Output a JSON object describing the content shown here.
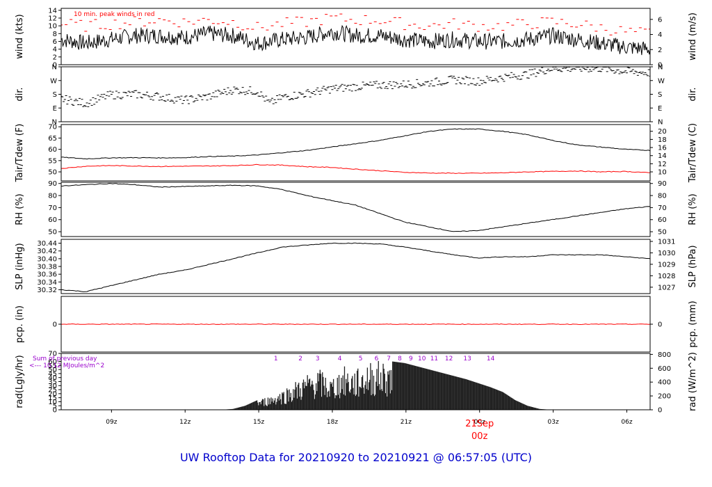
{
  "title": "UW Rooftop Data for 20210920  to  20210921 @ 06:57:05  (UTC)",
  "colors": {
    "primary": "#000000",
    "secondary": "#ff0000",
    "note": "#9900cc",
    "title": "#0000cc"
  },
  "chart_data": {
    "type": "line",
    "x_axis": {
      "unit": "hours since 20210920 06:57 UTC",
      "range": [
        0,
        24
      ],
      "ticks": [
        {
          "x": 2.05,
          "label": "09z"
        },
        {
          "x": 5.05,
          "label": "12z"
        },
        {
          "x": 8.05,
          "label": "15z"
        },
        {
          "x": 11.05,
          "label": "18z"
        },
        {
          "x": 14.05,
          "label": "21z"
        },
        {
          "x": 17.05,
          "label": "00z"
        },
        {
          "x": 20.05,
          "label": "03z"
        },
        {
          "x": 23.05,
          "label": "06z"
        }
      ],
      "date_marker": {
        "x": 17.05,
        "date": "21Sep",
        "time": "00z"
      }
    },
    "panels": [
      {
        "id": "wind",
        "left_label": "wind (kts)",
        "right_label": "wind (m/s)",
        "ylim": [
          0,
          14.5
        ],
        "left_ticks": [
          {
            "v": 0,
            "t": "0"
          },
          {
            "v": 2,
            "t": "2"
          },
          {
            "v": 4,
            "t": "4"
          },
          {
            "v": 6,
            "t": "6"
          },
          {
            "v": 8,
            "t": "8"
          },
          {
            "v": 10,
            "t": "10"
          },
          {
            "v": 12,
            "t": "12"
          },
          {
            "v": 14,
            "t": "14"
          }
        ],
        "right_ticks": [
          {
            "v": 0,
            "t": "0"
          },
          {
            "v": 3.89,
            "t": "2"
          },
          {
            "v": 7.78,
            "t": "4"
          },
          {
            "v": 11.66,
            "t": "6"
          }
        ],
        "note": "10 min. peak winds in red",
        "series": [
          {
            "name": "wind speed",
            "color": "#000000",
            "style": "noisy",
            "x": [
              0,
              1,
              2,
              3,
              4,
              5,
              6,
              7,
              8,
              9,
              10,
              11,
              12,
              13,
              14,
              15,
              16,
              17,
              18,
              19,
              20,
              21,
              22,
              23,
              24
            ],
            "y": [
              6.5,
              5.5,
              6.5,
              7.5,
              7.5,
              7,
              8,
              7.5,
              5.5,
              6.5,
              7,
              8.5,
              7.5,
              7.5,
              6.5,
              6,
              6.5,
              6,
              6,
              6.5,
              7.5,
              6.5,
              5.5,
              4.5,
              4
            ]
          },
          {
            "name": "peak winds",
            "color": "#ff0000",
            "style": "dashes",
            "x": [
              0,
              1,
              2,
              3,
              4,
              5,
              6,
              7,
              8,
              9,
              10,
              11,
              12,
              13,
              14,
              15,
              16,
              17,
              18,
              19,
              20,
              21,
              22,
              23,
              24
            ],
            "y": [
              10.5,
              10,
              10.5,
              11,
              11.5,
              11,
              11.5,
              11,
              9.5,
              10.5,
              11,
              12,
              11.5,
              11.5,
              10.5,
              10,
              10.5,
              10,
              10,
              10.5,
              11,
              10.5,
              9.5,
              8.5,
              8
            ]
          }
        ]
      },
      {
        "id": "dir",
        "left_label": "dir.",
        "right_label": "dir.",
        "ylim": [
          0,
          360
        ],
        "left_ticks": [
          {
            "v": 360,
            "t": "N"
          },
          {
            "v": 270,
            "t": "W"
          },
          {
            "v": 180,
            "t": "S"
          },
          {
            "v": 90,
            "t": "E"
          },
          {
            "v": 0,
            "t": "N"
          }
        ],
        "right_ticks": [
          {
            "v": 360,
            "t": "N"
          },
          {
            "v": 270,
            "t": "W"
          },
          {
            "v": 180,
            "t": "S"
          },
          {
            "v": 90,
            "t": "E"
          },
          {
            "v": 0,
            "t": "N"
          }
        ],
        "series": [
          {
            "name": "direction",
            "color": "#000000",
            "style": "scatter",
            "x": [
              0,
              1,
              2,
              3,
              4,
              5,
              6,
              7,
              8,
              8.5,
              9,
              10,
              11,
              12,
              13,
              14,
              15,
              16,
              17,
              18,
              19,
              20,
              21,
              22,
              23,
              24
            ],
            "y": [
              150,
              120,
              175,
              180,
              165,
              140,
              165,
              210,
              200,
              120,
              160,
              185,
              215,
              230,
              240,
              245,
              255,
              275,
              265,
              290,
              310,
              350,
              350,
              350,
              330,
              320
            ]
          }
        ]
      },
      {
        "id": "temp",
        "left_label": "Tair/Tdew (F)",
        "right_label": "Tair/Tdew (C)",
        "ylim": [
          46,
          71
        ],
        "left_ticks": [
          {
            "v": 50,
            "t": "50"
          },
          {
            "v": 55,
            "t": "55"
          },
          {
            "v": 60,
            "t": "60"
          },
          {
            "v": 65,
            "t": "65"
          },
          {
            "v": 70,
            "t": "70"
          }
        ],
        "right_ticks": [
          {
            "v": 50,
            "t": "10"
          },
          {
            "v": 53.6,
            "t": "12"
          },
          {
            "v": 57.2,
            "t": "14"
          },
          {
            "v": 60.8,
            "t": "16"
          },
          {
            "v": 64.4,
            "t": "18"
          },
          {
            "v": 68,
            "t": "20"
          }
        ],
        "series": [
          {
            "name": "Tair",
            "color": "#000000",
            "style": "line",
            "x": [
              0,
              1,
              2,
              3,
              4,
              5,
              6,
              7,
              8,
              9,
              10,
              11,
              12,
              13,
              14,
              15,
              16,
              17,
              18,
              19,
              20,
              21,
              22,
              23,
              24
            ],
            "y": [
              56.5,
              55.8,
              56.2,
              56.3,
              56.2,
              56.3,
              56.8,
              57,
              57.5,
              58.5,
              59.5,
              61,
              62.5,
              64,
              66,
              68,
              69,
              69,
              68,
              66.5,
              64,
              62,
              61,
              60,
              59.5
            ]
          },
          {
            "name": "Tdew",
            "color": "#ff0000",
            "style": "line",
            "x": [
              0,
              1,
              2,
              3,
              4,
              5,
              6,
              7,
              8,
              9,
              10,
              11,
              12,
              13,
              14,
              15,
              16,
              17,
              18,
              19,
              20,
              21,
              22,
              23,
              24
            ],
            "y": [
              51.5,
              52.5,
              52.8,
              52.6,
              52.4,
              52.5,
              52.6,
              52.8,
              53.2,
              53,
              52.3,
              52,
              51.2,
              50.5,
              49.8,
              49.5,
              49.4,
              49.4,
              49.6,
              50,
              50.2,
              50.4,
              50,
              50.2,
              49.6
            ]
          }
        ]
      },
      {
        "id": "rh",
        "left_label": "RH (%)",
        "right_label": "RH (%)",
        "ylim": [
          46,
          91
        ],
        "left_ticks": [
          {
            "v": 50,
            "t": "50"
          },
          {
            "v": 60,
            "t": "60"
          },
          {
            "v": 70,
            "t": "70"
          },
          {
            "v": 80,
            "t": "80"
          },
          {
            "v": 90,
            "t": "90"
          }
        ],
        "right_ticks": [
          {
            "v": 50,
            "t": "50"
          },
          {
            "v": 60,
            "t": "60"
          },
          {
            "v": 70,
            "t": "70"
          },
          {
            "v": 80,
            "t": "80"
          },
          {
            "v": 90,
            "t": "90"
          }
        ],
        "series": [
          {
            "name": "RH",
            "color": "#000000",
            "style": "line",
            "x": [
              0,
              1,
              2,
              3,
              4,
              5,
              6,
              7,
              8,
              9,
              10,
              11,
              12,
              13,
              14,
              15,
              16,
              17,
              18,
              19,
              20,
              21,
              22,
              23,
              24
            ],
            "y": [
              88,
              89,
              90,
              89,
              87,
              87.5,
              88,
              88.5,
              88,
              85,
              80,
              76,
              72,
              65,
              58,
              54,
              50,
              51,
              54,
              57,
              60,
              63,
              66,
              69,
              71
            ]
          }
        ]
      },
      {
        "id": "slp",
        "left_label": "SLP (inHg)",
        "right_label": "SLP (hPa)",
        "ylim": [
          30.31,
          30.45
        ],
        "left_ticks": [
          {
            "v": 30.32,
            "t": "30.32"
          },
          {
            "v": 30.34,
            "t": "30.34"
          },
          {
            "v": 30.36,
            "t": "30.36"
          },
          {
            "v": 30.38,
            "t": "30.38"
          },
          {
            "v": 30.4,
            "t": "30.40"
          },
          {
            "v": 30.42,
            "t": "30.42"
          },
          {
            "v": 30.44,
            "t": "30.44"
          }
        ],
        "right_ticks": [
          {
            "v": 30.3265,
            "t": "1027"
          },
          {
            "v": 30.356,
            "t": "1028"
          },
          {
            "v": 30.3856,
            "t": "1029"
          },
          {
            "v": 30.4151,
            "t": "1030"
          },
          {
            "v": 30.4446,
            "t": "1031"
          }
        ],
        "series": [
          {
            "name": "SLP",
            "color": "#000000",
            "style": "line",
            "x": [
              0,
              1,
              2,
              3,
              4,
              5,
              6,
              7,
              8,
              9,
              10,
              11,
              12,
              13,
              14,
              15,
              16,
              17,
              18,
              19,
              20,
              21,
              22,
              23,
              24
            ],
            "y": [
              30.32,
              30.315,
              30.33,
              30.345,
              30.36,
              30.37,
              30.385,
              30.4,
              30.415,
              30.43,
              30.435,
              30.44,
              30.44,
              30.438,
              30.43,
              30.42,
              30.41,
              30.402,
              30.405,
              30.405,
              30.41,
              30.41,
              30.41,
              30.405,
              30.4
            ]
          }
        ]
      },
      {
        "id": "pcp",
        "left_label": "pcp. (in)",
        "right_label": "pcp. (mm)",
        "ylim": [
          -1,
          1
        ],
        "left_ticks": [
          {
            "v": 0,
            "t": "0"
          }
        ],
        "right_ticks": [
          {
            "v": 0,
            "t": "0"
          }
        ],
        "series": [
          {
            "name": "precipitation",
            "color": "#ff0000",
            "style": "line",
            "x": [
              0,
              24
            ],
            "y": [
              0,
              0
            ]
          }
        ]
      },
      {
        "id": "rad",
        "left_label": "rad(Lgly/hr)",
        "right_label": "rad (W/m^2)",
        "ylim": [
          0,
          70
        ],
        "left_ticks": [
          {
            "v": 0,
            "t": "0"
          },
          {
            "v": 5,
            "t": "5"
          },
          {
            "v": 10,
            "t": "10"
          },
          {
            "v": 15,
            "t": "15"
          },
          {
            "v": 20,
            "t": "20"
          },
          {
            "v": 25,
            "t": "25"
          },
          {
            "v": 30,
            "t": "30"
          },
          {
            "v": 35,
            "t": "35"
          },
          {
            "v": 40,
            "t": "40"
          },
          {
            "v": 45,
            "t": "45"
          },
          {
            "v": 50,
            "t": "50"
          },
          {
            "v": 55,
            "t": "55"
          },
          {
            "v": 60,
            "t": "60"
          },
          {
            "v": 70,
            "t": "70"
          }
        ],
        "right_ticks": [
          {
            "v": 0,
            "t": "0"
          },
          {
            "v": 17.2,
            "t": "200"
          },
          {
            "v": 34.4,
            "t": "400"
          },
          {
            "v": 51.6,
            "t": "600"
          },
          {
            "v": 68.8,
            "t": "800"
          }
        ],
        "note_lines": [
          "Sum of previous day",
          "<--- 10.12 MJoules/m^2"
        ],
        "hour_markers": [
          {
            "x": 8.75,
            "t": "1"
          },
          {
            "x": 9.75,
            "t": "2"
          },
          {
            "x": 10.45,
            "t": "3"
          },
          {
            "x": 11.35,
            "t": "4"
          },
          {
            "x": 12.2,
            "t": "5"
          },
          {
            "x": 12.85,
            "t": "6"
          },
          {
            "x": 13.35,
            "t": "7"
          },
          {
            "x": 13.8,
            "t": "8"
          },
          {
            "x": 14.25,
            "t": "9"
          },
          {
            "x": 14.7,
            "t": "10"
          },
          {
            "x": 15.2,
            "t": "11"
          },
          {
            "x": 15.8,
            "t": "12"
          },
          {
            "x": 16.55,
            "t": "13"
          },
          {
            "x": 17.5,
            "t": "14"
          }
        ],
        "series": [
          {
            "name": "radiation",
            "color": "#222222",
            "style": "bars",
            "x": [
              6.5,
              7,
              7.5,
              8,
              8.5,
              9,
              9.5,
              10,
              10.5,
              11,
              11.5,
              12,
              12.5,
              13,
              13.5,
              14,
              14.5,
              15,
              15.5,
              16,
              16.5,
              17,
              17.5,
              18,
              18.5,
              19,
              19.5,
              20
            ],
            "y": [
              0,
              1,
              5,
              12,
              18,
              25,
              35,
              45,
              52,
              40,
              55,
              50,
              60,
              62,
              60,
              58,
              54,
              50,
              46,
              42,
              38,
              33,
              28,
              22,
              12,
              5,
              1,
              0
            ]
          }
        ]
      }
    ]
  }
}
